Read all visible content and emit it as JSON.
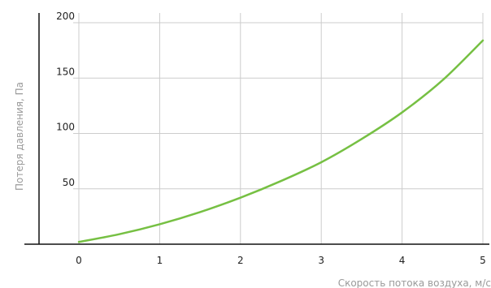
{
  "chart_data": {
    "type": "line",
    "xlabel": "Скорость потока воздуха, м/с",
    "ylabel": "Потеря давления, Па",
    "xlim": [
      0,
      5
    ],
    "ylim": [
      0,
      200
    ],
    "x_ticks": [
      "0",
      "1",
      "2",
      "3",
      "4",
      "5"
    ],
    "y_ticks": [
      "50",
      "100",
      "150",
      "200"
    ],
    "grid": true,
    "series": [
      {
        "color": "#76c043",
        "x": [
          0,
          0.5,
          1,
          1.5,
          2,
          2.5,
          3,
          3.5,
          4,
          4.5,
          5
        ],
        "y": [
          2,
          9,
          18,
          29,
          42,
          57,
          74,
          95,
          119,
          148,
          184
        ]
      }
    ]
  }
}
